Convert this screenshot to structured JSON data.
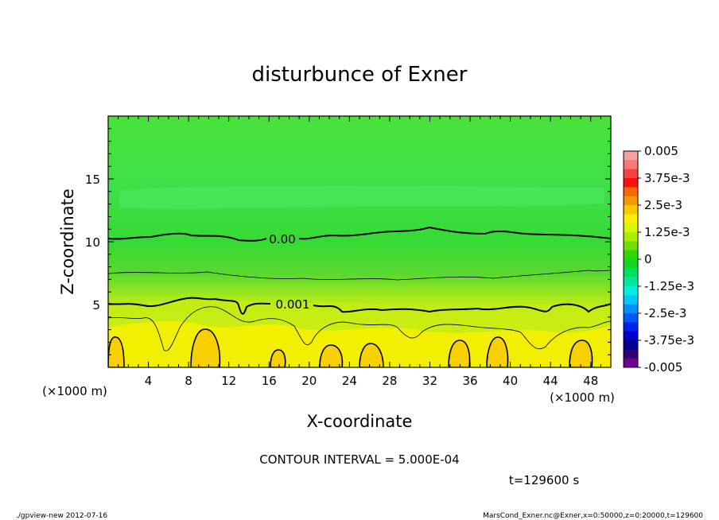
{
  "chart_data": {
    "type": "heatmap",
    "title": "disturbunce of Exner",
    "xlabel": "X-coordinate",
    "ylabel": "Z-coordinate",
    "x_unit": "(×1000 m)",
    "z_unit": "(×1000 m)",
    "xlim": [
      0,
      50
    ],
    "ylim": [
      0,
      20
    ],
    "x_ticks": [
      "4",
      "8",
      "12",
      "16",
      "20",
      "24",
      "28",
      "32",
      "36",
      "40",
      "44",
      "48"
    ],
    "y_ticks": [
      "5",
      "10",
      "15"
    ],
    "contour_labels": [
      "0.00",
      "0.001"
    ],
    "contour_interval_text": "CONTOUR INTERVAL = 5.000E-04",
    "time_text": "t=129600 s",
    "colorbar": {
      "range": [
        -0.005,
        0.005
      ],
      "labels": [
        "0.005",
        "3.75e-3",
        "2.5e-3",
        "1.25e-3",
        "0",
        "-1.25e-3",
        "-2.5e-3",
        "-3.75e-3",
        "-0.005"
      ],
      "colors": [
        "#f8a0a0",
        "#f87878",
        "#f84040",
        "#f81010",
        "#f86800",
        "#f89800",
        "#f8c800",
        "#f8f000",
        "#d8f800",
        "#a8f000",
        "#70e000",
        "#30d800",
        "#10d820",
        "#00e060",
        "#00e8a0",
        "#00f0e0",
        "#00c8f8",
        "#0090f8",
        "#0058f8",
        "#0020f0",
        "#0000c8",
        "#000090",
        "#300070",
        "#700090"
      ]
    }
  },
  "footer": {
    "left": "./gpview-new  2012-07-16",
    "right": "MarsCond_Exner.nc@Exner,x=0:50000,z=0:20000,t=129600"
  }
}
